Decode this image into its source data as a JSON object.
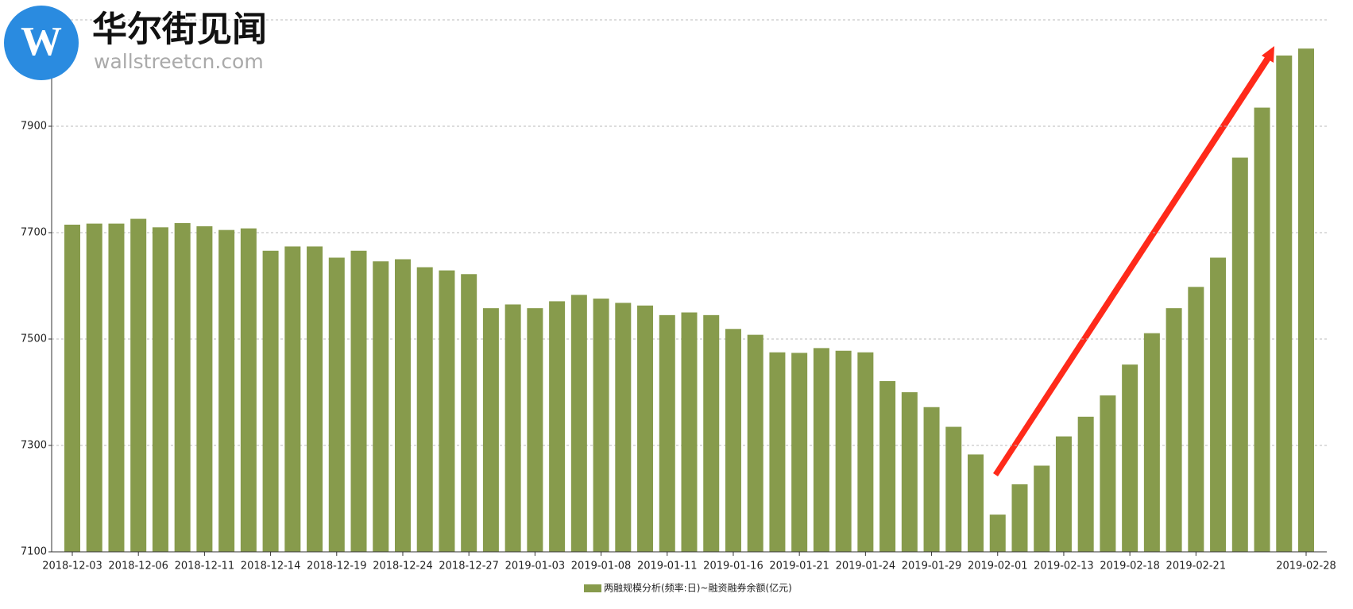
{
  "watermark": {
    "title": "华尔街见闻",
    "url": "wallstreetcn.com"
  },
  "chart_data": {
    "type": "bar",
    "categories": [
      "2018-12-03",
      null,
      null,
      "2018-12-06",
      null,
      null,
      "2018-12-11",
      null,
      null,
      "2018-12-14",
      null,
      null,
      "2018-12-19",
      null,
      null,
      "2018-12-24",
      null,
      null,
      "2018-12-27",
      null,
      null,
      "2019-01-03",
      null,
      null,
      "2019-01-08",
      null,
      null,
      "2019-01-11",
      null,
      null,
      "2019-01-16",
      null,
      null,
      "2019-01-21",
      null,
      null,
      "2019-01-24",
      null,
      null,
      "2019-01-29",
      null,
      null,
      "2019-02-01",
      null,
      null,
      "2019-02-13",
      null,
      null,
      "2019-02-18",
      null,
      null,
      "2019-02-21",
      null,
      null,
      null,
      null,
      "2019-02-28"
    ],
    "series": [
      {
        "name": "两融规模分析(频率:日)~融资融券余额(亿元)",
        "color": "#879b4c",
        "values": [
          7715,
          7717,
          7717,
          7726,
          7710,
          7718,
          7712,
          7705,
          7708,
          7666,
          7674,
          7674,
          7653,
          7666,
          7646,
          7650,
          7635,
          7629,
          7622,
          7558,
          7565,
          7558,
          7571,
          7583,
          7576,
          7568,
          7563,
          7545,
          7550,
          7545,
          7519,
          7508,
          7475,
          7474,
          7483,
          7478,
          7475,
          7421,
          7400,
          7372,
          7335,
          7283,
          7170,
          7227,
          7262,
          7317,
          7354,
          7394,
          7452,
          7511,
          7558,
          7598,
          7653,
          7841,
          7935,
          8033,
          8046
        ]
      }
    ],
    "ylim": [
      7100,
      8100
    ],
    "yticks": [
      7100,
      7300,
      7500,
      7700,
      7900
    ],
    "grid": true,
    "legend": "bottom"
  }
}
